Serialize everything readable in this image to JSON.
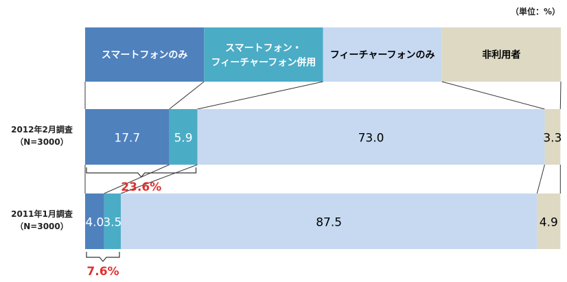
{
  "unit_label": "（単位：%）",
  "chart_data": {
    "type": "bar",
    "stacked": true,
    "orientation": "horizontal",
    "categories": [
      "スマートフォンのみ",
      "スマートフォン・\nフィーチャーフォン併用",
      "フィーチャーフォンのみ",
      "非利用者"
    ],
    "category_colors": [
      "#4f81bd",
      "#4bacc6",
      "#c6d9f1",
      "#ddd9c3"
    ],
    "category_text_colors": [
      "#ffffff",
      "#ffffff",
      "#000000",
      "#000000"
    ],
    "rows": [
      {
        "label_line1": "2012年2月調査",
        "label_line2": "（N=3000）",
        "values": [
          17.7,
          5.9,
          73.0,
          3.3
        ],
        "value_labels": [
          "17.7",
          "5.9",
          "73.0",
          "3.3"
        ],
        "bracket_total": "23.6%"
      },
      {
        "label_line1": "2011年1月調査",
        "label_line2": "（N=3000）",
        "values": [
          4.0,
          3.5,
          87.5,
          4.9
        ],
        "value_labels": [
          "4.0",
          "3.5",
          "87.5",
          "4.9"
        ],
        "bracket_total": "7.6%"
      }
    ],
    "bracket_color": "#e03030"
  }
}
